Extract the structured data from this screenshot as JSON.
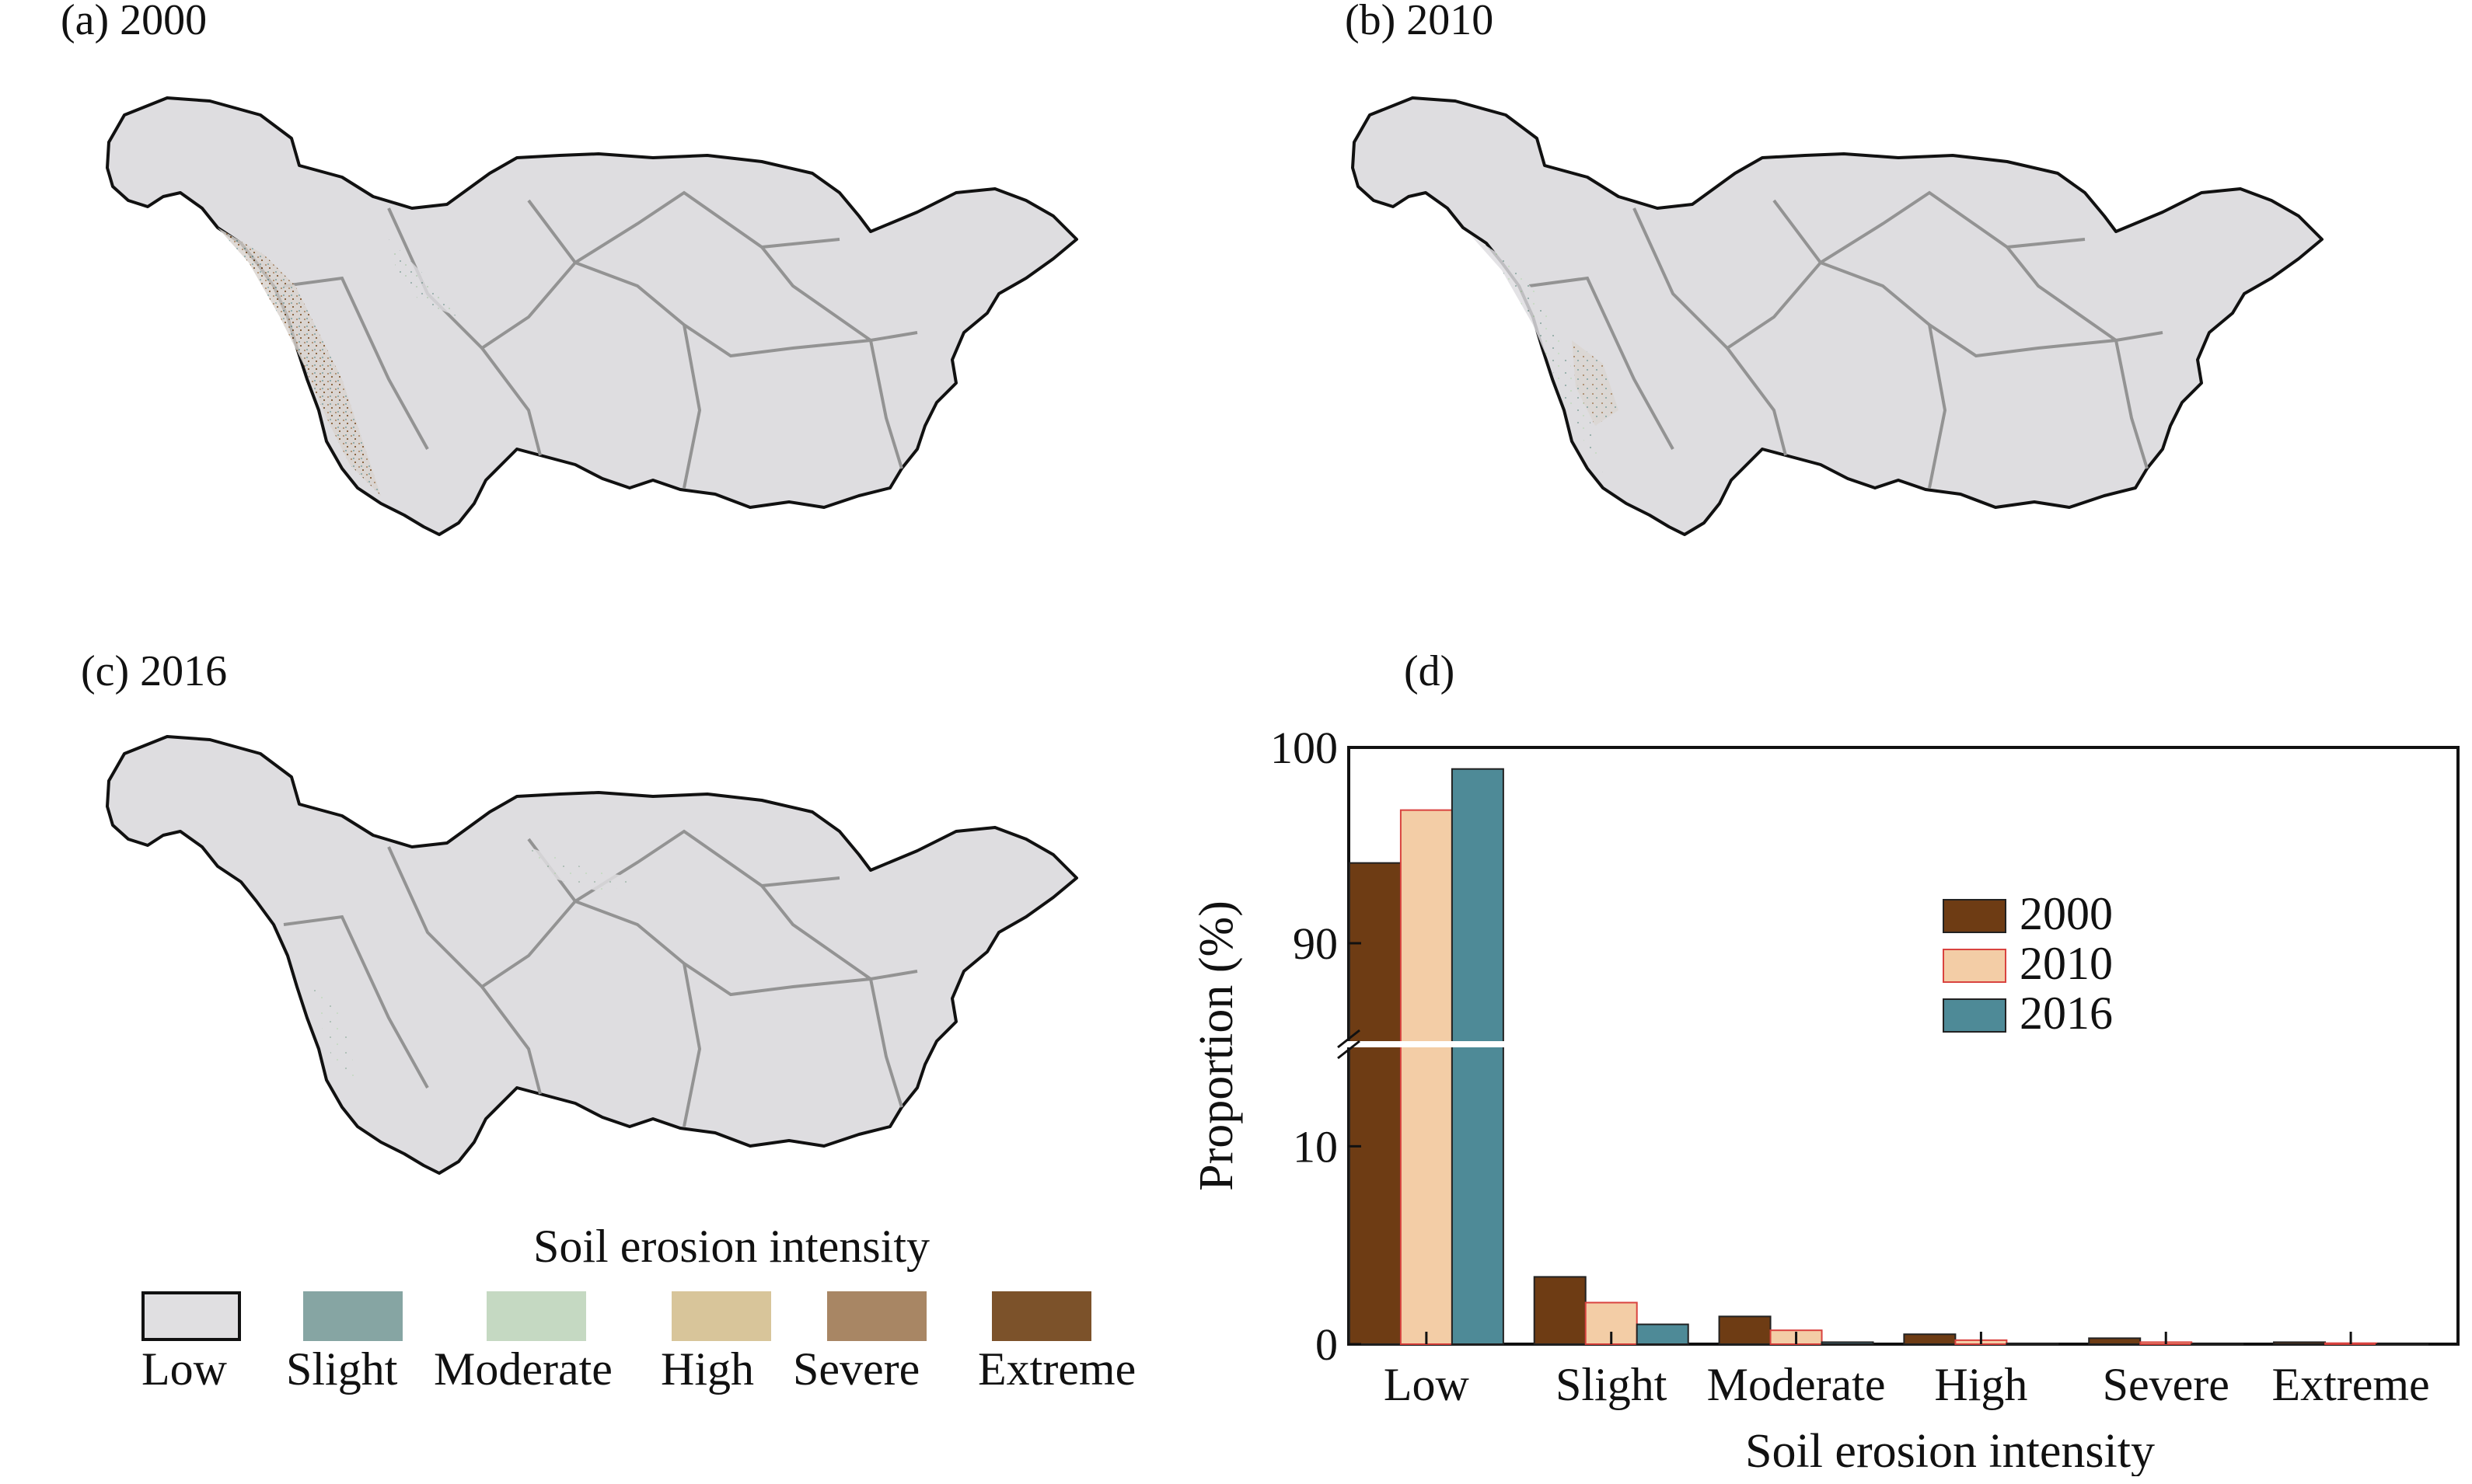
{
  "panels": {
    "a": "(a) 2000",
    "b": "(b) 2010",
    "c": "(c) 2016",
    "d": "(d)"
  },
  "map_legend": {
    "title": "Soil erosion intensity",
    "items": [
      {
        "label": "Low",
        "color": "#e0dfe1"
      },
      {
        "label": "Slight",
        "color": "#86a5a3"
      },
      {
        "label": "Moderate",
        "color": "#c5d9c2"
      },
      {
        "label": "High",
        "color": "#d8c59a"
      },
      {
        "label": "Severe",
        "color": "#a88664"
      },
      {
        "label": "Extreme",
        "color": "#7c522a"
      }
    ]
  },
  "chart_data": {
    "type": "bar",
    "xlabel": "Soil erosion intensity",
    "ylabel": "Proportion (%)",
    "categories": [
      "Low",
      "Slight",
      "Moderate",
      "High",
      "Severe",
      "Extreme"
    ],
    "series": [
      {
        "name": "2000",
        "color": "#6e3c14",
        "values": [
          94.1,
          3.4,
          1.4,
          0.5,
          0.3,
          0.1
        ]
      },
      {
        "name": "2010",
        "color": "#f3cda6",
        "values": [
          96.8,
          2.1,
          0.7,
          0.2,
          0.1,
          0.05
        ]
      },
      {
        "name": "2016",
        "color": "#4e8a97",
        "values": [
          98.9,
          1.0,
          0.1,
          0.03,
          0.01,
          0.0
        ]
      }
    ],
    "axis_break": {
      "lower": [
        0,
        15
      ],
      "upper": [
        85,
        100
      ]
    },
    "yticks_lower": [
      0,
      10
    ],
    "yticks_upper": [
      90,
      100
    ],
    "legend_position": "right"
  }
}
